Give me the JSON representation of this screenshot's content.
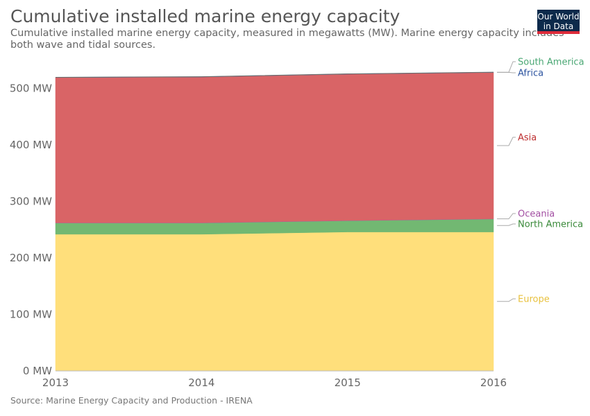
{
  "header": {
    "title": "Cumulative installed marine energy capacity",
    "subtitle": "Cumulative installed marine energy capacity, measured in megawatts (MW). Marine energy capacity includes both wave and tidal sources."
  },
  "logo": {
    "line1": "Our World",
    "line2": "in Data",
    "bg_color": "#0c2a4b",
    "accent_color": "#dd2b3a"
  },
  "footer": {
    "source": "Source: Marine Energy Capacity and Production - IRENA"
  },
  "chart_data": {
    "type": "area",
    "stacked": true,
    "x": [
      2013,
      2014,
      2015,
      2016
    ],
    "x_tick_labels": [
      "2013",
      "2014",
      "2015",
      "2016"
    ],
    "ylim": [
      0,
      550
    ],
    "y_ticks": [
      0,
      100,
      200,
      300,
      400,
      500
    ],
    "y_tick_labels": [
      "0 MW",
      "100 MW",
      "200 MW",
      "300 MW",
      "400 MW",
      "500 MW"
    ],
    "grid": true,
    "legend_placement": "right-inline",
    "series": [
      {
        "name": "Europe",
        "values": [
          242,
          242,
          246,
          246
        ],
        "color": "#ffdf7b",
        "label_color": "#e8c13e"
      },
      {
        "name": "North America",
        "values": [
          20,
          20,
          20,
          23
        ],
        "color": "#72b872",
        "label_color": "#3a8a3a"
      },
      {
        "name": "Oceania",
        "values": [
          0.5,
          0.5,
          0.5,
          0.5
        ],
        "color": "#a65aa6",
        "label_color": "#a24ea2"
      },
      {
        "name": "Asia",
        "values": [
          257,
          258,
          259,
          259
        ],
        "color": "#d96466",
        "label_color": "#be2f30"
      },
      {
        "name": "Africa",
        "values": [
          0.3,
          0.3,
          0.3,
          0.3
        ],
        "color": "#3b5fa6",
        "label_color": "#2d54a0"
      },
      {
        "name": "South America",
        "values": [
          0.2,
          0.2,
          0.2,
          0.2
        ],
        "color": "#56b684",
        "label_color": "#4aa774"
      }
    ]
  }
}
